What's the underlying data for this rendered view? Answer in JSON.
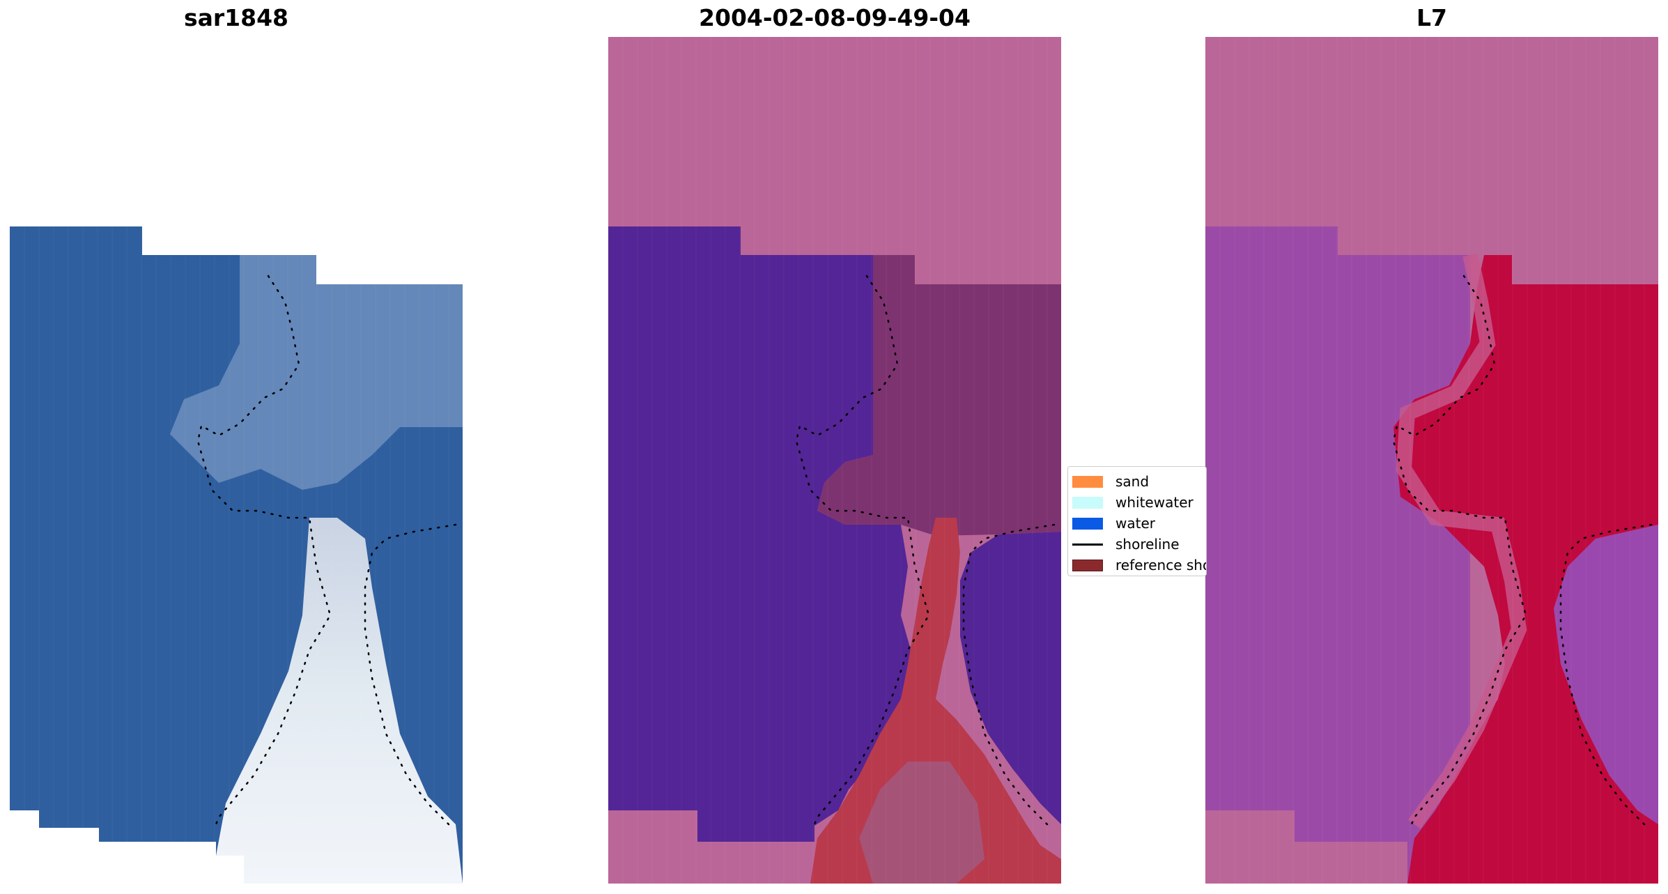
{
  "panels": [
    {
      "title": "sar1848"
    },
    {
      "title": "2004-02-08-09-49-04"
    },
    {
      "title": "L7"
    }
  ],
  "legend": {
    "items": [
      {
        "label": "sand",
        "color": "#ff8c3f",
        "kind": "patch"
      },
      {
        "label": "whitewater",
        "color": "#c8fbfb",
        "kind": "patch"
      },
      {
        "label": "water",
        "color": "#0a5ae6",
        "kind": "patch"
      },
      {
        "label": "shoreline",
        "color": "#000000",
        "kind": "line"
      },
      {
        "label": "reference shoreline",
        "color": "#8b2a2d",
        "kind": "patch"
      }
    ]
  },
  "colors": {
    "rgb_water": "#2e5fa1",
    "rgb_sand": "#e8edf4",
    "class_background": "#bb6698",
    "class_water": "#542596",
    "class_sand": "#b93a4c",
    "class_mixed": "#7e3371",
    "index_land": "#c0093f",
    "index_water": "#9a4ba8",
    "shoreline_dots": "#000000"
  }
}
